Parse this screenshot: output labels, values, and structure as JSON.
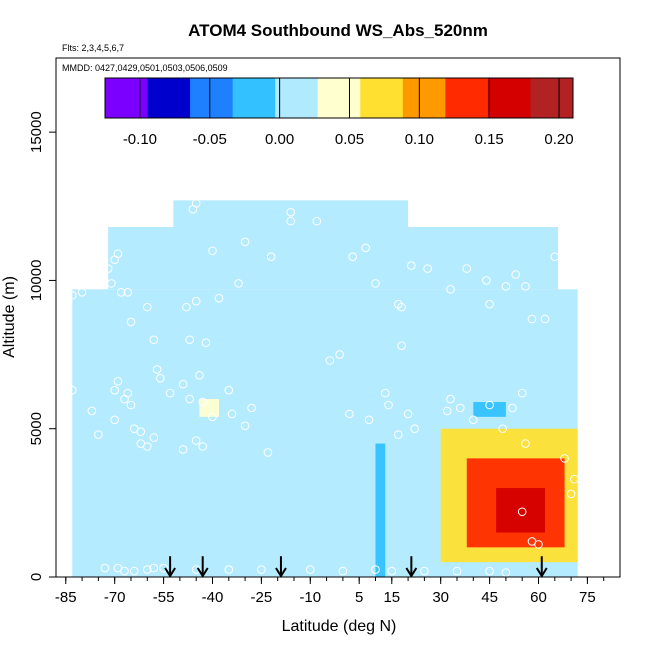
{
  "chart_data": {
    "type": "heatmap",
    "title": "ATOM4 Southbound WS_Abs_520nm",
    "annotations": [
      "Flts: 2,3,4,5,6,7",
      "MMDD: 0427,0429,0501,0503,0506,0509"
    ],
    "xlabel": "Latitude (deg N)",
    "ylabel": "Altitude (m)",
    "xlim": [
      -88,
      85
    ],
    "ylim": [
      0,
      17500
    ],
    "x_ticks": [
      "-85",
      "-70",
      "-55",
      "-40",
      "-25",
      "-10",
      "5",
      "15",
      "30",
      "45",
      "60",
      "75"
    ],
    "x_tick_values": [
      -85,
      -70,
      -55,
      -40,
      -25,
      -10,
      5,
      15,
      30,
      45,
      60,
      75
    ],
    "y_ticks": [
      "0",
      "5000",
      "10000",
      "15000"
    ],
    "y_tick_values": [
      0,
      5000,
      10000,
      15000
    ],
    "colorbar": {
      "range": [
        -0.125,
        0.21
      ],
      "tick_labels": [
        "-0.10",
        "-0.05",
        "0.00",
        "0.05",
        "0.10",
        "0.15",
        "0.20"
      ],
      "tick_values": [
        -0.1,
        -0.05,
        0.0,
        0.05,
        0.1,
        0.15,
        0.2
      ],
      "colors": [
        "#7b00ff",
        "#0000cd",
        "#1e7fff",
        "#33c2ff",
        "#b0eaff",
        "#ffffd0",
        "#ffe030",
        "#ff9900",
        "#ff2a00",
        "#d40000",
        "#b22222"
      ]
    },
    "background_value": 0.02,
    "regions": [
      {
        "x": [
          -83,
          72
        ],
        "y": [
          0,
          9700
        ],
        "value": 0.02
      },
      {
        "x": [
          -72,
          66
        ],
        "y": [
          9700,
          11800
        ],
        "value": 0.02
      },
      {
        "x": [
          -52,
          20
        ],
        "y": [
          11800,
          12700
        ],
        "value": 0.02
      },
      {
        "x": [
          30,
          72
        ],
        "y": [
          500,
          5000
        ],
        "value": 0.08
      },
      {
        "x": [
          38,
          68
        ],
        "y": [
          1000,
          4000
        ],
        "value": 0.14
      },
      {
        "x": [
          47,
          62
        ],
        "y": [
          1500,
          3000
        ],
        "value": 0.18
      },
      {
        "x": [
          10,
          13
        ],
        "y": [
          0,
          4500
        ],
        "value": -0.04
      },
      {
        "x": [
          40,
          50
        ],
        "y": [
          5400,
          5900
        ],
        "value": -0.02
      },
      {
        "x": [
          -44,
          -38
        ],
        "y": [
          5400,
          6000
        ],
        "value": 0.05
      }
    ],
    "arrows_lat": [
      -53,
      -43,
      -19,
      21,
      61
    ],
    "sample_points": [
      [
        -83,
        9500
      ],
      [
        -80,
        9600
      ],
      [
        -83,
        6300
      ],
      [
        -77,
        5600
      ],
      [
        -75,
        4800
      ],
      [
        -72,
        10400
      ],
      [
        -70,
        10700
      ],
      [
        -69,
        10900
      ],
      [
        -68,
        9600
      ],
      [
        -71,
        9900
      ],
      [
        -66,
        9600
      ],
      [
        -65,
        8600
      ],
      [
        -60,
        9100
      ],
      [
        -58,
        8000
      ],
      [
        -57,
        7000
      ],
      [
        -67,
        6000
      ],
      [
        -69,
        6600
      ],
      [
        -70,
        6300
      ],
      [
        -66,
        6200
      ],
      [
        -65,
        5800
      ],
      [
        -70,
        5300
      ],
      [
        -64,
        5000
      ],
      [
        -62,
        4500
      ],
      [
        -58,
        4700
      ],
      [
        -56,
        6700
      ],
      [
        -53,
        6200
      ],
      [
        -49,
        6500
      ],
      [
        -47,
        6000
      ],
      [
        -44,
        6800
      ],
      [
        -43,
        5900
      ],
      [
        -40,
        5400
      ],
      [
        -35,
        6300
      ],
      [
        -34,
        5500
      ],
      [
        -30,
        5100
      ],
      [
        -28,
        5700
      ],
      [
        -23,
        4200
      ],
      [
        -48,
        9100
      ],
      [
        -45,
        9300
      ],
      [
        -38,
        9400
      ],
      [
        -32,
        9900
      ],
      [
        -22,
        10800
      ],
      [
        -47,
        8000
      ],
      [
        -42,
        7900
      ],
      [
        -46,
        12400
      ],
      [
        -45,
        12600
      ],
      [
        -30,
        11300
      ],
      [
        -16,
        12300
      ],
      [
        -8,
        12000
      ],
      [
        -16,
        12000
      ],
      [
        -40,
        11000
      ],
      [
        -4,
        7300
      ],
      [
        -1,
        7500
      ],
      [
        3,
        10800
      ],
      [
        7,
        11100
      ],
      [
        10,
        9900
      ],
      [
        17,
        9200
      ],
      [
        18,
        9100
      ],
      [
        18,
        7800
      ],
      [
        13,
        6200
      ],
      [
        14,
        5800
      ],
      [
        17,
        4800
      ],
      [
        20,
        5500
      ],
      [
        22,
        5000
      ],
      [
        33,
        6000
      ],
      [
        32,
        5600
      ],
      [
        36,
        5700
      ],
      [
        40,
        5300
      ],
      [
        45,
        5800
      ],
      [
        52,
        5700
      ],
      [
        55,
        6200
      ],
      [
        49,
        5000
      ],
      [
        56,
        4500
      ],
      [
        68,
        4000
      ],
      [
        70,
        2800
      ],
      [
        71,
        3300
      ],
      [
        55,
        2200
      ],
      [
        58,
        1200
      ],
      [
        60,
        1100
      ],
      [
        45,
        9200
      ],
      [
        50,
        9800
      ],
      [
        56,
        9800
      ],
      [
        58,
        8700
      ],
      [
        62,
        8700
      ],
      [
        65,
        10800
      ],
      [
        33,
        9700
      ],
      [
        38,
        10400
      ],
      [
        44,
        10000
      ],
      [
        53,
        10200
      ],
      [
        21,
        10500
      ],
      [
        26,
        10400
      ],
      [
        2,
        5500
      ],
      [
        8,
        5300
      ],
      [
        -62,
        4900
      ],
      [
        -60,
        4400
      ],
      [
        -45,
        4600
      ],
      [
        -43,
        4400
      ],
      [
        -49,
        4300
      ],
      [
        -73,
        300
      ],
      [
        -69,
        300
      ],
      [
        -67,
        200
      ],
      [
        -64,
        200
      ],
      [
        -60,
        250
      ],
      [
        -58,
        300
      ],
      [
        -55,
        300
      ],
      [
        -45,
        250
      ],
      [
        -35,
        250
      ],
      [
        -25,
        250
      ],
      [
        -10,
        250
      ],
      [
        0,
        200
      ],
      [
        10,
        250
      ],
      [
        15,
        200
      ],
      [
        25,
        200
      ],
      [
        35,
        200
      ],
      [
        45,
        200
      ],
      [
        50,
        150
      ]
    ]
  }
}
